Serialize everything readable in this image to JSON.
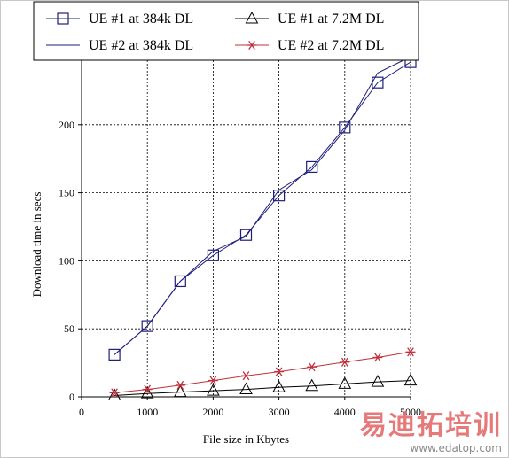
{
  "chart_data": {
    "type": "line",
    "title": "",
    "xlabel": "File size in Kbytes",
    "ylabel": "Download time in secs",
    "xlim": [
      0,
      5000
    ],
    "ylim": [
      0,
      250
    ],
    "xticks": [
      0,
      1000,
      2000,
      3000,
      4000,
      5000
    ],
    "yticks": [
      0,
      50,
      100,
      150,
      200
    ],
    "grid": true,
    "legend_position": "top",
    "series": [
      {
        "name": "UE #1 at 384k DL",
        "marker": "square",
        "color": "#1f1f7a",
        "x": [
          500,
          1000,
          1500,
          2000,
          2500,
          3000,
          3500,
          4000,
          4500,
          5000
        ],
        "y": [
          31,
          52,
          85,
          104,
          119,
          148,
          169,
          198,
          231,
          246
        ]
      },
      {
        "name": "UE #1 at 7.2M DL",
        "marker": "triangle",
        "color": "#000000",
        "x": [
          500,
          1000,
          1500,
          2000,
          2500,
          3000,
          3500,
          4000,
          4500,
          5000
        ],
        "y": [
          1,
          2.5,
          3.5,
          4.5,
          5.5,
          7,
          8,
          9.5,
          11,
          12
        ]
      },
      {
        "name": "UE #2 at 384k DL",
        "marker": "none",
        "color": "#1f1f7a",
        "x": [
          500,
          1000,
          1500,
          2000,
          2500,
          3000,
          3500,
          4000,
          4500,
          5000
        ],
        "y": [
          31,
          52,
          85,
          107,
          118,
          152,
          167,
          196,
          238,
          250
        ]
      },
      {
        "name": "UE #2 at 7.2M DL",
        "marker": "asterisk",
        "color": "#c0303a",
        "x": [
          500,
          1000,
          1500,
          2000,
          2500,
          3000,
          3500,
          4000,
          4500,
          5000
        ],
        "y": [
          3,
          5.5,
          8.5,
          12,
          15.5,
          18.5,
          22,
          25.5,
          29,
          33
        ]
      }
    ]
  },
  "watermark": {
    "logo": "易迪拓培训",
    "url": "www.edatop.com"
  }
}
